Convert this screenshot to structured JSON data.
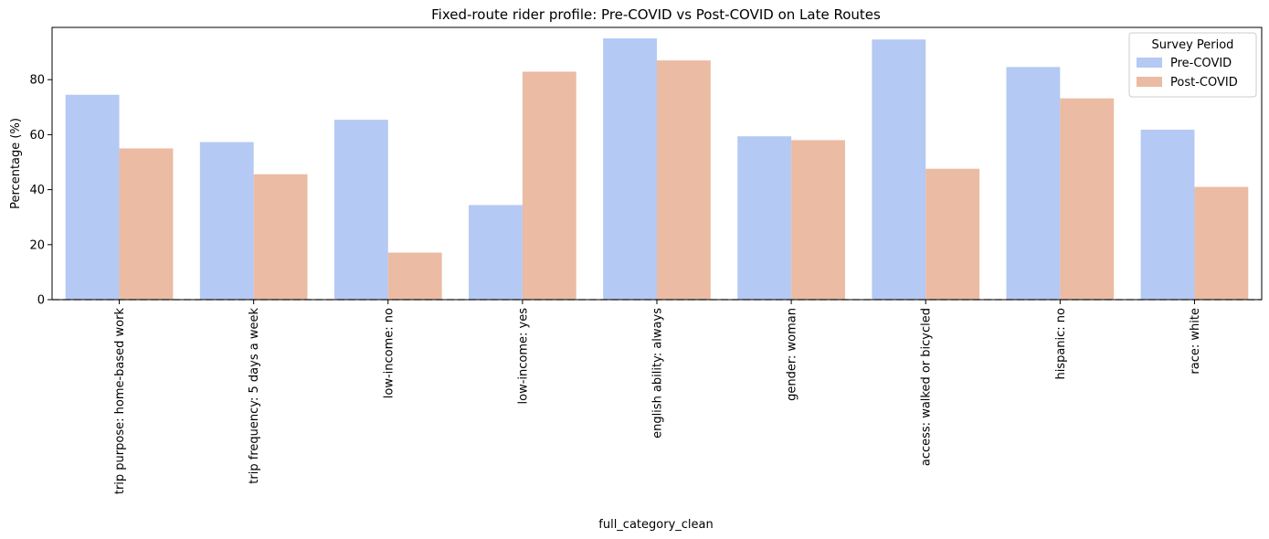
{
  "chart_data": {
    "type": "bar",
    "title": "Fixed-route rider profile: Pre-COVID vs Post-COVID on Late Routes",
    "xlabel": "full_category_clean",
    "ylabel": "Percentage (%)",
    "ylim": [
      0,
      99
    ],
    "yticks": [
      0,
      20,
      40,
      60,
      80
    ],
    "grid": false,
    "reference_line": {
      "y": 0,
      "style": "dashed"
    },
    "legend": {
      "title": "Survey Period",
      "placement": "top-right"
    },
    "categories": [
      "trip purpose:  home-based work",
      "trip frequency:  5 days a week",
      "low-income:  no",
      "low-income:  yes",
      "english ability:  always",
      "gender:  woman",
      "access:  walked or bicycled",
      "hispanic:  no",
      "race:  white"
    ],
    "series": [
      {
        "name": "Pre-COVID",
        "color": "#b4c9f3",
        "values": [
          74.5,
          57.3,
          65.4,
          34.4,
          95.0,
          59.4,
          94.6,
          84.6,
          61.8
        ]
      },
      {
        "name": "Post-COVID",
        "color": "#ebbba3",
        "values": [
          55.0,
          45.6,
          17.1,
          82.9,
          87.0,
          58.0,
          47.6,
          73.2,
          41.0
        ]
      }
    ]
  }
}
